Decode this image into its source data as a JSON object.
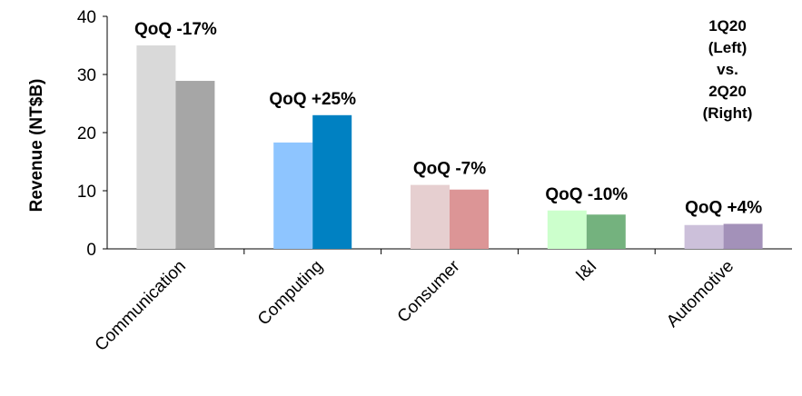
{
  "chart_data": {
    "type": "bar",
    "ylabel": "Revenue (NT$B)",
    "xlabel": "",
    "ylim": [
      0,
      40
    ],
    "yticks": [
      0,
      10,
      20,
      30,
      40
    ],
    "categories": [
      "Communication",
      "Computing",
      "Consumer",
      "I&I",
      "Automotive"
    ],
    "series": [
      {
        "name": "1Q20",
        "values": [
          35,
          18.3,
          11,
          6.6,
          4.1
        ]
      },
      {
        "name": "2Q20",
        "values": [
          28.9,
          23,
          10.2,
          5.9,
          4.3
        ]
      }
    ],
    "bar_colors": [
      [
        "#d9d9d9",
        "#a6a6a6"
      ],
      [
        "#8ec5ff",
        "#0081c2"
      ],
      [
        "#e6cfd0",
        "#dc9596"
      ],
      [
        "#ccffcc",
        "#74b27e"
      ],
      [
        "#ccc0da",
        "#a391b9"
      ]
    ],
    "annotations": [
      "QoQ -17%",
      "QoQ +25%",
      "QoQ -7%",
      "QoQ -10%",
      "QoQ +4%"
    ],
    "legend_text": [
      "1Q20",
      "(Left)",
      "vs.",
      "2Q20",
      "(Right)"
    ],
    "legend_position": "top-right",
    "grid": false
  }
}
